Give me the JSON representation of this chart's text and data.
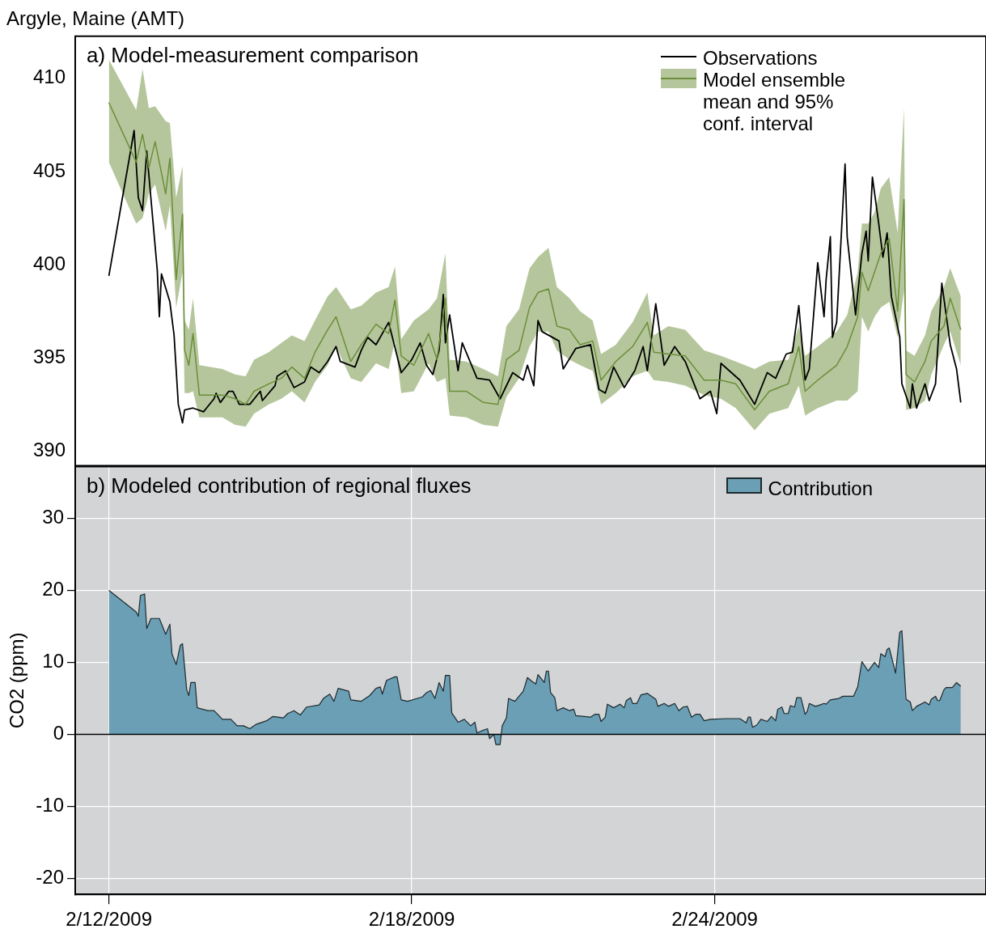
{
  "chart_data": [
    {
      "type": "line",
      "title": "Argyle, Maine (AMT)",
      "annotations": [
        "a) Model-measurement comparison"
      ],
      "xlim": [
        "2009-02-11T08:00",
        "2009-03-01T09:00"
      ],
      "xticks": [
        {
          "value": "2009-02-12",
          "label": null
        },
        {
          "value": "2009-02-18",
          "label": null
        },
        {
          "value": "2009-02-24",
          "label": null
        }
      ],
      "ylim": [
        389.2,
        412.26
      ],
      "yticks": [
        390,
        395,
        400,
        405,
        410
      ],
      "tick_labels": "y",
      "grid": false,
      "legend": "top right",
      "series": [
        {
          "name": "Model ensemble mean and 95% conf. interval",
          "color": "#6b8e3a",
          "x": [
            "2009-02-12T00:00",
            "2009-02-12T13:00",
            "2009-02-12T16:00",
            "2009-02-12T19:00",
            "2009-02-12T22:00",
            "2009-02-13T03:00",
            "2009-02-13T05:00",
            "2009-02-13T08:00",
            "2009-02-13T11:00",
            "2009-02-13T12:00",
            "2009-02-13T14:00",
            "2009-02-13T16:00",
            "2009-02-13T19:00",
            "2009-02-14T06:00",
            "2009-02-14T12:00",
            "2009-02-14T17:00",
            "2009-02-14T21:00",
            "2009-02-15T04:00",
            "2009-02-15T10:00",
            "2009-02-15T15:00",
            "2009-02-15T21:00",
            "2009-02-16T02:00",
            "2009-02-16T08:00",
            "2009-02-16T12:00",
            "2009-02-16T19:00",
            "2009-02-17T00:00",
            "2009-02-17T07:00",
            "2009-02-17T13:00",
            "2009-02-17T16:00",
            "2009-02-17T19:00",
            "2009-02-18T01:00",
            "2009-02-18T08:00",
            "2009-02-18T12:00",
            "2009-02-18T16:00",
            "2009-02-18T18:00",
            "2009-02-19T02:00",
            "2009-02-19T10:00",
            "2009-02-19T17:00",
            "2009-02-19T21:00",
            "2009-02-20T03:00",
            "2009-02-20T08:00",
            "2009-02-20T12:00",
            "2009-02-20T17:00",
            "2009-02-20T21:00",
            "2009-02-21T03:00",
            "2009-02-21T08:00",
            "2009-02-21T14:00",
            "2009-02-21T18:00",
            "2009-02-22T01:00",
            "2009-02-22T09:00",
            "2009-02-22T16:00",
            "2009-02-22T19:00",
            "2009-02-23T02:00",
            "2009-02-23T10:00",
            "2009-02-23T19:00",
            "2009-02-24T03:00",
            "2009-02-24T10:00",
            "2009-02-24T19:00",
            "2009-02-25T02:00",
            "2009-02-25T11:00",
            "2009-02-25T16:00",
            "2009-02-25T19:00",
            "2009-02-26T01:00",
            "2009-02-26T10:00",
            "2009-02-26T15:00",
            "2009-02-26T20:00",
            "2009-02-26T22:00",
            "2009-02-27T01:00",
            "2009-02-27T04:00",
            "2009-02-27T07:00",
            "2009-02-27T11:00",
            "2009-02-27T15:00",
            "2009-02-27T18:00",
            "2009-02-27T19:00",
            "2009-02-27T23:00",
            "2009-02-28T04:00",
            "2009-02-28T07:00",
            "2009-02-28T13:00",
            "2009-02-28T16:00",
            "2009-02-28T21:00"
          ],
          "values": [
            408.7,
            405.5,
            407.0,
            405.2,
            406.6,
            403.8,
            405.7,
            399.2,
            402.7,
            395.4,
            394.6,
            396.3,
            393.0,
            393.0,
            392.8,
            392.5,
            393.2,
            393.6,
            393.9,
            394.5,
            393.9,
            395.3,
            396.5,
            397.2,
            394.8,
            395.7,
            396.8,
            396.3,
            398.1,
            395.1,
            394.6,
            396.3,
            394.9,
            398.2,
            393.2,
            393.2,
            392.6,
            392.5,
            394.9,
            395.4,
            397.7,
            398.5,
            398.7,
            396.7,
            396.5,
            395.7,
            395.9,
            393.8,
            394.8,
            395.6,
            396.9,
            395.3,
            395.2,
            395.1,
            393.8,
            393.8,
            393.6,
            392.2,
            393.2,
            393.6,
            395.6,
            393.2,
            393.8,
            394.6,
            395.6,
            397.2,
            399.6,
            398.6,
            399.6,
            400.6,
            401.4,
            397.5,
            403.5,
            394.1,
            393.7,
            394.8,
            395.9,
            396.7,
            398.2,
            396.5
          ],
          "upper": [
            411.0,
            408.3,
            410.5,
            408.4,
            408.5,
            407.7,
            407.6,
            403.6,
            405.3,
            397.0,
            396.5,
            398.2,
            394.6,
            394.4,
            394.1,
            394.0,
            394.9,
            395.3,
            395.8,
            396.2,
            395.9,
            397.0,
            398.3,
            398.8,
            397.6,
            397.8,
            398.5,
            398.8,
            399.9,
            396.0,
            397.0,
            397.6,
            398.2,
            400.6,
            394.9,
            394.8,
            394.4,
            394.0,
            396.7,
            397.6,
            399.8,
            400.4,
            400.9,
            398.8,
            398.2,
            397.5,
            397.0,
            395.2,
            395.7,
            396.9,
            398.5,
            396.2,
            396.7,
            396.5,
            395.4,
            395.1,
            394.8,
            394.4,
            394.8,
            394.9,
            396.7,
            395.1,
            395.6,
            396.4,
            397.3,
            399.6,
            402.2,
            402.2,
            402.8,
            404.1,
            404.7,
            401.7,
            408.4,
            395.4,
            395.1,
            396.2,
            397.5,
            398.8,
            399.8,
            398.3
          ],
          "lower": [
            405.5,
            402.2,
            402.5,
            403.8,
            404.3,
            401.8,
            403.2,
            397.7,
            399.6,
            393.1,
            393.1,
            393.2,
            391.8,
            391.8,
            391.4,
            391.3,
            392.0,
            392.5,
            392.8,
            393.2,
            392.6,
            393.7,
            394.6,
            395.6,
            393.9,
            393.7,
            394.7,
            394.4,
            395.9,
            393.1,
            393.2,
            394.7,
            393.7,
            393.9,
            391.9,
            391.8,
            391.4,
            391.3,
            392.9,
            393.9,
            395.6,
            396.4,
            396.4,
            395.4,
            394.9,
            394.6,
            394.3,
            392.5,
            393.1,
            394.0,
            394.3,
            393.8,
            393.7,
            393.5,
            393.0,
            392.8,
            392.3,
            391.1,
            392.0,
            392.3,
            393.5,
            391.9,
            392.3,
            392.7,
            392.7,
            393.2,
            397.2,
            396.4,
            397.2,
            397.7,
            398.0,
            396.1,
            398.6,
            392.2,
            392.3,
            392.7,
            394.1,
            395.7,
            396.4,
            394.6
          ]
        },
        {
          "name": "Observations",
          "color": "#000000",
          "x": [
            "2009-02-12T00:00",
            "2009-02-12T12:00",
            "2009-02-12T14:00",
            "2009-02-12T16:00",
            "2009-02-12T18:00",
            "2009-02-12T23:00",
            "2009-02-13T00:00",
            "2009-02-13T01:00",
            "2009-02-13T05:00",
            "2009-02-13T07:00",
            "2009-02-13T09:00",
            "2009-02-13T11:00",
            "2009-02-13T12:00",
            "2009-02-13T16:00",
            "2009-02-13T21:00",
            "2009-02-14T02:00",
            "2009-02-14T03:00",
            "2009-02-14T05:00",
            "2009-02-14T09:00",
            "2009-02-14T11:00",
            "2009-02-14T14:00",
            "2009-02-14T19:00",
            "2009-02-15T00:00",
            "2009-02-15T01:00",
            "2009-02-15T07:00",
            "2009-02-15T08:00",
            "2009-02-15T12:00",
            "2009-02-15T16:00",
            "2009-02-15T21:00",
            "2009-02-16T00:00",
            "2009-02-16T04:00",
            "2009-02-16T08:00",
            "2009-02-16T12:00",
            "2009-02-16T14:00",
            "2009-02-16T21:00",
            "2009-02-17T00:00",
            "2009-02-17T03:00",
            "2009-02-17T07:00",
            "2009-02-17T13:00",
            "2009-02-17T19:00",
            "2009-02-18T00:00",
            "2009-02-18T04:00",
            "2009-02-18T07:00",
            "2009-02-18T10:00",
            "2009-02-18T13:00",
            "2009-02-18T15:00",
            "2009-02-18T16:00",
            "2009-02-18T18:00",
            "2009-02-18T22:00",
            "2009-02-19T00:00",
            "2009-02-19T07:00",
            "2009-02-19T13:00",
            "2009-02-19T18:00",
            "2009-02-20T00:00",
            "2009-02-20T05:00",
            "2009-02-20T07:00",
            "2009-02-20T10:00",
            "2009-02-20T12:00",
            "2009-02-20T14:00",
            "2009-02-20T22:00",
            "2009-02-21T00:00",
            "2009-02-21T06:00",
            "2009-02-21T13:00",
            "2009-02-21T17:00",
            "2009-02-21T20:00",
            "2009-02-22T00:00",
            "2009-02-22T05:00",
            "2009-02-22T10:00",
            "2009-02-22T14:00",
            "2009-02-22T16:00",
            "2009-02-22T20:00",
            "2009-02-23T00:00",
            "2009-02-23T05:00",
            "2009-02-23T10:00",
            "2009-02-23T17:00",
            "2009-02-23T22:00",
            "2009-02-24T01:00",
            "2009-02-24T03:00",
            "2009-02-24T12:00",
            "2009-02-24T19:00",
            "2009-02-25T01:00",
            "2009-02-25T05:00",
            "2009-02-25T10:00",
            "2009-02-25T13:00",
            "2009-02-25T16:00",
            "2009-02-25T19:00",
            "2009-02-25T21:00",
            "2009-02-26T01:00",
            "2009-02-26T04:00",
            "2009-02-26T05:00",
            "2009-02-26T07:00",
            "2009-02-26T08:00",
            "2009-02-26T10:00",
            "2009-02-26T14:00",
            "2009-02-26T15:00",
            "2009-02-26T19:00",
            "2009-02-26T22:00",
            "2009-02-27T00:00",
            "2009-02-27T01:00",
            "2009-02-27T03:00",
            "2009-02-27T06:00",
            "2009-02-27T08:00",
            "2009-02-27T10:00",
            "2009-02-27T12:00",
            "2009-02-27T16:00",
            "2009-02-27T17:00",
            "2009-02-27T21:00",
            "2009-02-27T22:00",
            "2009-02-28T00:00",
            "2009-02-28T04:00",
            "2009-02-28T06:00",
            "2009-02-28T09:00",
            "2009-02-28T12:00",
            "2009-02-28T16:00",
            "2009-02-28T19:00",
            "2009-02-28T21:00"
          ],
          "values": [
            399.4,
            407.2,
            403.6,
            402.9,
            406.1,
            399.7,
            397.2,
            399.5,
            398.0,
            396.2,
            392.5,
            391.5,
            392.2,
            392.3,
            392.1,
            392.8,
            393.1,
            392.6,
            393.2,
            393.2,
            392.5,
            392.5,
            393.2,
            392.7,
            393.5,
            394.0,
            394.3,
            393.4,
            393.7,
            394.5,
            394.2,
            394.8,
            395.6,
            394.8,
            394.5,
            395.4,
            396.1,
            395.7,
            396.9,
            394.2,
            394.9,
            395.8,
            394.6,
            394.1,
            395.4,
            398.4,
            395.8,
            397.3,
            394.3,
            395.8,
            393.9,
            393.8,
            392.8,
            394.2,
            393.8,
            394.6,
            393.5,
            397.0,
            396.4,
            395.9,
            394.4,
            395.5,
            395.7,
            393.3,
            393.1,
            394.5,
            393.4,
            394.3,
            395.6,
            394.3,
            397.9,
            394.6,
            395.6,
            394.8,
            392.8,
            393.2,
            392.0,
            394.7,
            393.8,
            392.5,
            394.2,
            393.9,
            395.2,
            395.3,
            397.8,
            393.8,
            394.4,
            400.1,
            397.2,
            399.2,
            401.5,
            396.1,
            396.9,
            405.4,
            401.5,
            397.3,
            400.6,
            401.8,
            400.2,
            404.7,
            402.2,
            400.4,
            401.7,
            398.3,
            396.1,
            393.6,
            392.3,
            393.6,
            392.3,
            393.6,
            392.7,
            393.6,
            399.0,
            395.7,
            394.4,
            392.6
          ]
        }
      ]
    },
    {
      "type": "area",
      "xlabel": null,
      "ylabel": "CO2 (ppm)",
      "annotations": [
        "b) Modeled contribution of regional fluxes"
      ],
      "xlim": [
        "2009-02-11T08:00",
        "2009-03-01T09:00"
      ],
      "xticks": [
        {
          "value": "2009-02-12",
          "label": "2/12/2009"
        },
        {
          "value": "2009-02-18",
          "label": "2/18/2009"
        },
        {
          "value": "2009-02-24",
          "label": "2/24/2009"
        }
      ],
      "ylim": [
        -22.2,
        37.2
      ],
      "yticks": [
        -20,
        -10,
        0,
        10,
        20,
        30
      ],
      "grid": true,
      "legend": "top right",
      "ref_lines": [
        {
          "axis": "y",
          "value": 0,
          "color": "#000000"
        }
      ],
      "series": [
        {
          "name": "Contribution",
          "color": "#6a9fb5",
          "x": [
            "2009-02-12T00:00",
            "2009-02-12T13:00",
            "2009-02-12T14:00",
            "2009-02-12T15:00",
            "2009-02-12T17:00",
            "2009-02-12T18:00",
            "2009-02-12T20:00",
            "2009-02-13T00:00",
            "2009-02-13T03:00",
            "2009-02-13T05:00",
            "2009-02-13T06:00",
            "2009-02-13T08:00",
            "2009-02-13T10:00",
            "2009-02-13T11:00",
            "2009-02-13T13:00",
            "2009-02-13T14:00",
            "2009-02-13T15:00",
            "2009-02-13T17:00",
            "2009-02-13T18:00",
            "2009-02-13T23:00",
            "2009-02-14T02:00",
            "2009-02-14T06:00",
            "2009-02-14T10:00",
            "2009-02-14T13:00",
            "2009-02-14T16:00",
            "2009-02-14T19:00",
            "2009-02-14T22:00",
            "2009-02-15T03:00",
            "2009-02-15T06:00",
            "2009-02-15T11:00",
            "2009-02-15T13:00",
            "2009-02-15T16:00",
            "2009-02-15T19:00",
            "2009-02-15T22:00",
            "2009-02-16T04:00",
            "2009-02-16T06:00",
            "2009-02-16T09:00",
            "2009-02-16T11:00",
            "2009-02-16T13:00",
            "2009-02-16T18:00",
            "2009-02-16T19:00",
            "2009-02-17T00:00",
            "2009-02-17T04:00",
            "2009-02-17T07:00",
            "2009-02-17T09:00",
            "2009-02-17T10:00",
            "2009-02-17T12:00",
            "2009-02-17T16:00",
            "2009-02-17T17:00",
            "2009-02-17T19:00",
            "2009-02-17T22:00",
            "2009-02-18T05:00",
            "2009-02-18T07:00",
            "2009-02-18T09:00",
            "2009-02-18T11:00",
            "2009-02-18T13:00",
            "2009-02-18T15:00",
            "2009-02-18T16:00",
            "2009-02-18T18:00",
            "2009-02-18T19:00",
            "2009-02-18T22:00",
            "2009-02-19T01:00",
            "2009-02-19T04:00",
            "2009-02-19T06:00",
            "2009-02-19T07:00",
            "2009-02-19T10:00",
            "2009-02-19T12:00",
            "2009-02-19T13:00",
            "2009-02-19T15:00",
            "2009-02-19T16:00",
            "2009-02-19T18:00",
            "2009-02-19T19:00",
            "2009-02-19T21:00",
            "2009-02-19T22:00",
            "2009-02-20T01:00",
            "2009-02-20T05:00",
            "2009-02-20T07:00",
            "2009-02-20T09:00",
            "2009-02-20T11:00",
            "2009-02-20T12:00",
            "2009-02-20T15:00",
            "2009-02-20T16:00",
            "2009-02-20T17:00",
            "2009-02-20T18:00",
            "2009-02-20T20:00",
            "2009-02-20T21:00",
            "2009-02-21T00:00",
            "2009-02-21T03:00",
            "2009-02-21T05:00",
            "2009-02-21T06:00",
            "2009-02-21T13:00",
            "2009-02-21T15:00",
            "2009-02-21T17:00",
            "2009-02-21T18:00",
            "2009-02-21T20:00",
            "2009-02-21T21:00",
            "2009-02-22T00:00",
            "2009-02-22T03:00",
            "2009-02-22T05:00",
            "2009-02-22T06:00",
            "2009-02-22T08:00",
            "2009-02-22T09:00",
            "2009-02-22T11:00",
            "2009-02-22T13:00",
            "2009-02-22T16:00",
            "2009-02-22T18:00",
            "2009-02-22T20:00",
            "2009-02-22T21:00",
            "2009-02-23T00:00",
            "2009-02-23T02:00",
            "2009-02-23T05:00",
            "2009-02-23T07:00",
            "2009-02-23T09:00",
            "2009-02-23T11:00",
            "2009-02-23T13:00",
            "2009-02-23T15:00",
            "2009-02-23T17:00",
            "2009-02-23T19:00",
            "2009-02-23T22:00",
            "2009-02-24T06:00",
            "2009-02-24T12:00",
            "2009-02-24T15:00",
            "2009-02-24T16:00",
            "2009-02-24T17:00",
            "2009-02-24T18:00",
            "2009-02-24T20:00",
            "2009-02-24T22:00",
            "2009-02-25T01:00",
            "2009-02-25T03:00",
            "2009-02-25T05:00",
            "2009-02-25T06:00",
            "2009-02-25T08:00",
            "2009-02-25T09:00",
            "2009-02-25T11:00",
            "2009-02-25T12:00",
            "2009-02-25T14:00",
            "2009-02-25T15:00",
            "2009-02-25T17:00",
            "2009-02-25T19:00",
            "2009-02-25T20:00",
            "2009-02-25T21:00",
            "2009-02-26T00:00",
            "2009-02-26T04:00",
            "2009-02-26T05:00",
            "2009-02-26T07:00",
            "2009-02-26T11:00",
            "2009-02-26T13:00",
            "2009-02-26T18:00",
            "2009-02-26T20:00",
            "2009-02-26T22:00",
            "2009-02-27T01:00",
            "2009-02-27T04:00",
            "2009-02-27T06:00",
            "2009-02-27T07:00",
            "2009-02-27T09:00",
            "2009-02-27T10:00",
            "2009-02-27T11:00",
            "2009-02-27T13:00",
            "2009-02-27T14:00",
            "2009-02-27T16:00",
            "2009-02-27T17:00",
            "2009-02-27T19:00",
            "2009-02-27T21:00",
            "2009-02-27T22:00",
            "2009-02-28T00:00",
            "2009-02-28T04:00",
            "2009-02-28T06:00",
            "2009-02-28T07:00",
            "2009-02-28T09:00",
            "2009-02-28T10:00",
            "2009-02-28T11:00",
            "2009-02-28T13:00",
            "2009-02-28T14:00",
            "2009-02-28T17:00",
            "2009-02-28T19:00",
            "2009-02-28T21:00"
          ],
          "values": [
            20.0,
            17.0,
            16.4,
            19.3,
            19.5,
            14.7,
            16.1,
            16.1,
            13.9,
            15.3,
            11.2,
            9.7,
            12.4,
            12.6,
            6.2,
            5.4,
            7.2,
            7.2,
            3.7,
            3.3,
            3.3,
            2.1,
            2.1,
            1.2,
            1.2,
            0.8,
            1.4,
            1.9,
            2.5,
            2.3,
            2.9,
            3.3,
            2.7,
            3.8,
            4.1,
            5.0,
            5.6,
            4.6,
            6.4,
            6.0,
            4.8,
            4.6,
            5.4,
            6.4,
            6.6,
            5.6,
            7.5,
            8.0,
            8.0,
            4.8,
            4.6,
            5.2,
            5.8,
            6.1,
            5.0,
            7.2,
            6.0,
            8.2,
            8.2,
            3.0,
            1.7,
            2.1,
            1.2,
            1.7,
            0.2,
            0.6,
            0.8,
            -0.6,
            0.0,
            -1.4,
            -1.4,
            1.2,
            2.3,
            5.0,
            4.6,
            6.0,
            7.9,
            7.4,
            7.0,
            8.3,
            7.2,
            8.8,
            8.8,
            5.8,
            5.1,
            3.3,
            3.7,
            3.3,
            3.5,
            2.6,
            2.4,
            2.8,
            2.8,
            1.8,
            2.4,
            4.2,
            3.7,
            4.2,
            3.7,
            4.7,
            5.1,
            4.3,
            4.3,
            5.5,
            5.7,
            5.3,
            4.9,
            3.9,
            4.3,
            3.9,
            4.3,
            3.3,
            3.8,
            3.9,
            2.4,
            2.8,
            2.8,
            1.9,
            2.1,
            2.2,
            2.2,
            1.6,
            2.4,
            2.4,
            1.0,
            1.3,
            2.1,
            1.8,
            2.5,
            1.9,
            3.5,
            3.8,
            2.9,
            2.9,
            4.0,
            3.8,
            5.1,
            5.1,
            2.8,
            3.2,
            4.3,
            3.9,
            4.3,
            4.2,
            4.8,
            5.0,
            5.3,
            5.3,
            6.6,
            10.1,
            8.8,
            10.0,
            9.3,
            11.2,
            10.8,
            11.8,
            12.0,
            9.7,
            8.5,
            14.2,
            14.4,
            4.9,
            4.5,
            3.3,
            3.9,
            4.5,
            4.1,
            4.9,
            5.3,
            4.7,
            4.7,
            6.2,
            6.5,
            6.5,
            7.2,
            6.7
          ]
        }
      ]
    }
  ]
}
